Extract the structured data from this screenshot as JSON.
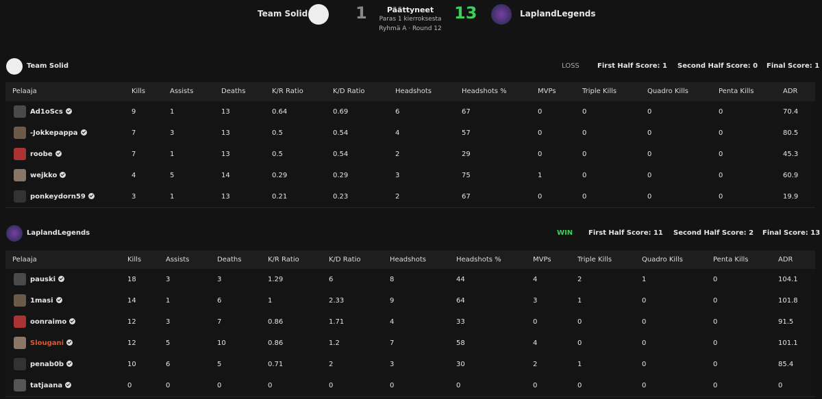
{
  "header": {
    "team1": {
      "name": "Team Solid",
      "score": "1"
    },
    "status": "Päättyneet",
    "format": "Paras 1 kierroksesta",
    "round": "Ryhmä A · Round 12",
    "team2": {
      "name": "LaplandLegends",
      "score": "13"
    }
  },
  "teams": [
    {
      "name": "Team Solid",
      "result": "LOSS",
      "first_half": "First Half Score: 1",
      "second_half": "Second Half Score: 0",
      "final": "Final Score: 1",
      "columns": [
        "Pelaaja",
        "Kills",
        "Assists",
        "Deaths",
        "K/R Ratio",
        "K/D Ratio",
        "Headshots",
        "Headshots %",
        "MVPs",
        "Triple Kills",
        "Quadro Kills",
        "Penta Kills",
        "ADR"
      ],
      "rows": [
        {
          "player": "Ad1oScs",
          "stats": [
            "9",
            "1",
            "13",
            "0.64",
            "0.69",
            "6",
            "67",
            "0",
            "0",
            "0",
            "0",
            "70.4"
          ]
        },
        {
          "player": "-Jokkepappa",
          "stats": [
            "7",
            "3",
            "13",
            "0.5",
            "0.54",
            "4",
            "57",
            "0",
            "0",
            "0",
            "0",
            "80.5"
          ]
        },
        {
          "player": "roobe",
          "stats": [
            "7",
            "1",
            "13",
            "0.5",
            "0.54",
            "2",
            "29",
            "0",
            "0",
            "0",
            "0",
            "45.3"
          ]
        },
        {
          "player": "wejkko",
          "stats": [
            "4",
            "5",
            "14",
            "0.29",
            "0.29",
            "3",
            "75",
            "1",
            "0",
            "0",
            "0",
            "60.9"
          ]
        },
        {
          "player": "ponkeydorn59",
          "stats": [
            "3",
            "1",
            "13",
            "0.21",
            "0.23",
            "2",
            "67",
            "0",
            "0",
            "0",
            "0",
            "19.9"
          ]
        }
      ]
    },
    {
      "name": "LaplandLegends",
      "result": "WIN",
      "first_half": "First Half Score: 11",
      "second_half": "Second Half Score: 2",
      "final": "Final Score: 13",
      "columns": [
        "Pelaaja",
        "Kills",
        "Assists",
        "Deaths",
        "K/R Ratio",
        "K/D Ratio",
        "Headshots",
        "Headshots %",
        "MVPs",
        "Triple Kills",
        "Quadro Kills",
        "Penta Kills",
        "ADR"
      ],
      "rows": [
        {
          "player": "pauski",
          "stats": [
            "18",
            "3",
            "3",
            "1.29",
            "6",
            "8",
            "44",
            "4",
            "2",
            "1",
            "0",
            "104.1"
          ]
        },
        {
          "player": "1masi",
          "stats": [
            "14",
            "1",
            "6",
            "1",
            "2.33",
            "9",
            "64",
            "3",
            "1",
            "0",
            "0",
            "101.8"
          ]
        },
        {
          "player": "oonraimo",
          "stats": [
            "12",
            "3",
            "7",
            "0.86",
            "1.71",
            "4",
            "33",
            "0",
            "0",
            "0",
            "0",
            "91.5"
          ]
        },
        {
          "player": "Slougani",
          "color": "#e8552b",
          "stats": [
            "12",
            "5",
            "10",
            "0.86",
            "1.2",
            "7",
            "58",
            "4",
            "0",
            "0",
            "0",
            "101.1"
          ]
        },
        {
          "player": "penab0b",
          "stats": [
            "10",
            "6",
            "5",
            "0.71",
            "2",
            "3",
            "30",
            "2",
            "1",
            "0",
            "0",
            "85.4"
          ]
        },
        {
          "player": "tatjaana",
          "stats": [
            "0",
            "0",
            "0",
            "0",
            "0",
            "0",
            "0",
            "0",
            "0",
            "0",
            "0",
            "0"
          ]
        }
      ]
    }
  ]
}
